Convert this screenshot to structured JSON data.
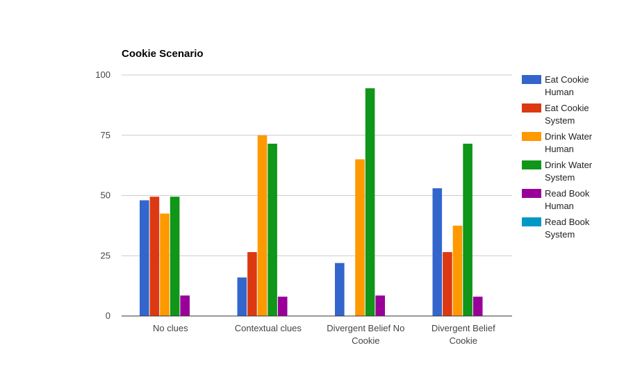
{
  "chart_data": {
    "type": "bar",
    "title": "Cookie Scenario",
    "xlabel": "",
    "ylabel": "",
    "ylim": [
      0,
      100
    ],
    "yticks": [
      0,
      25,
      50,
      75,
      100
    ],
    "grid": true,
    "legend_position": "right",
    "categories": [
      [
        "No clues"
      ],
      [
        "Contextual clues"
      ],
      [
        "Divergent Belief No",
        "Cookie"
      ],
      [
        "Divergent Belief",
        "Cookie"
      ]
    ],
    "series": [
      {
        "name": [
          "Eat Cookie",
          "Human"
        ],
        "color": "#3366cc",
        "values": [
          48,
          16,
          22,
          53
        ]
      },
      {
        "name": [
          "Eat Cookie",
          "System"
        ],
        "color": "#dc3912",
        "values": [
          49.5,
          26.5,
          0,
          26.5
        ]
      },
      {
        "name": [
          "Drink Water",
          "Human"
        ],
        "color": "#ff9900",
        "values": [
          42.5,
          75,
          65,
          37.5
        ]
      },
      {
        "name": [
          "Drink Water",
          "System"
        ],
        "color": "#109618",
        "values": [
          49.5,
          71.5,
          94.5,
          71.5
        ]
      },
      {
        "name": [
          "Read Book",
          "Human"
        ],
        "color": "#990099",
        "values": [
          8.5,
          8,
          8.5,
          8
        ]
      },
      {
        "name": [
          "Read Book",
          "System"
        ],
        "color": "#0099c6",
        "values": [
          0,
          0,
          0,
          0
        ]
      }
    ]
  }
}
